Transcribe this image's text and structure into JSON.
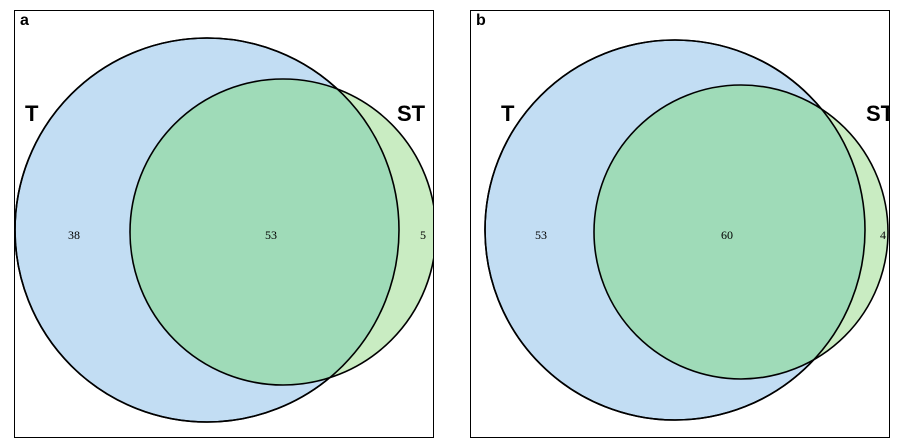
{
  "panels": [
    {
      "letter": "a",
      "set_labels": {
        "left": "T",
        "right": "ST"
      },
      "counts": {
        "left_only": "38",
        "overlap": "53",
        "right_only": "5"
      }
    },
    {
      "letter": "b",
      "set_labels": {
        "left": "T",
        "right": "ST"
      },
      "counts": {
        "left_only": "53",
        "overlap": "60",
        "right_only": "4"
      }
    }
  ],
  "colors": {
    "set_t_fill": "#c2ddf3",
    "set_st_fill": "#c9ecc2",
    "overlap_fill": "#9fdbb8",
    "stroke": "#000000"
  }
}
